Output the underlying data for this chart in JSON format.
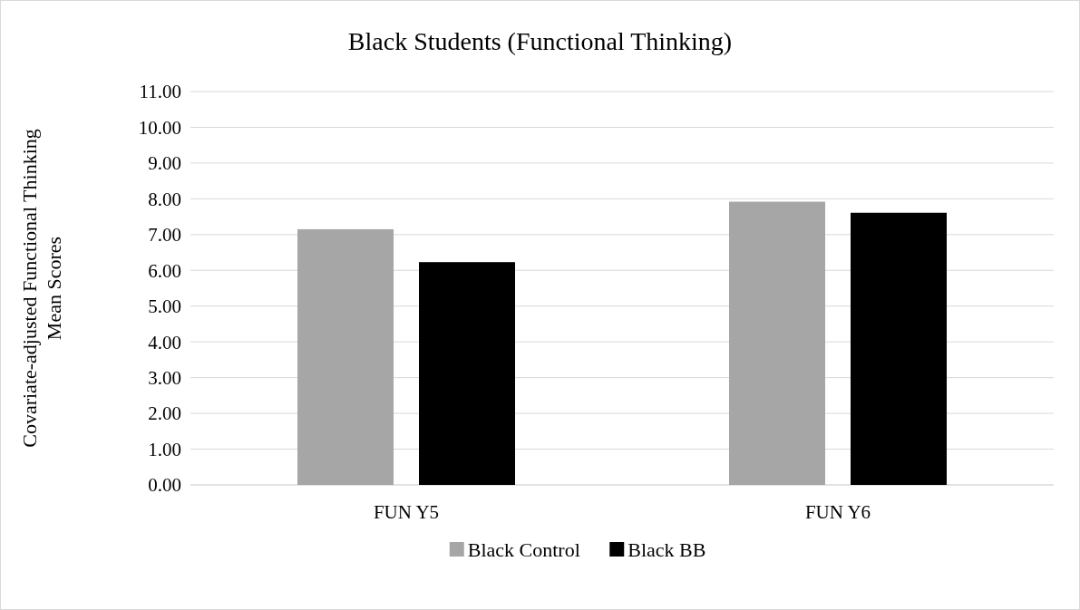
{
  "chart_data": {
    "type": "bar",
    "title": "Black Students (Functional Thinking)",
    "ylabel": "Covariate-adjusted Functional Thinking Mean Scores",
    "categories": [
      "FUN Y5",
      "FUN Y6"
    ],
    "series": [
      {
        "name": "Black Control",
        "color": "#a6a6a6",
        "values": [
          7.15,
          7.92
        ]
      },
      {
        "name": "Black BB",
        "color": "#000000",
        "values": [
          6.23,
          7.61
        ]
      }
    ],
    "ylim": [
      0,
      11
    ],
    "yticks": [
      {
        "value": 0,
        "label": "0.00"
      },
      {
        "value": 1,
        "label": "1.00"
      },
      {
        "value": 2,
        "label": "2.00"
      },
      {
        "value": 3,
        "label": "3.00"
      },
      {
        "value": 4,
        "label": "4.00"
      },
      {
        "value": 5,
        "label": "5.00"
      },
      {
        "value": 6,
        "label": "6.00"
      },
      {
        "value": 7,
        "label": "7.00"
      },
      {
        "value": 8,
        "label": "8.00"
      },
      {
        "value": 9,
        "label": "9.00"
      },
      {
        "value": 10,
        "label": "10.00"
      },
      {
        "value": 11,
        "label": "11.00"
      }
    ],
    "grid": "y",
    "legend": "bottom"
  }
}
